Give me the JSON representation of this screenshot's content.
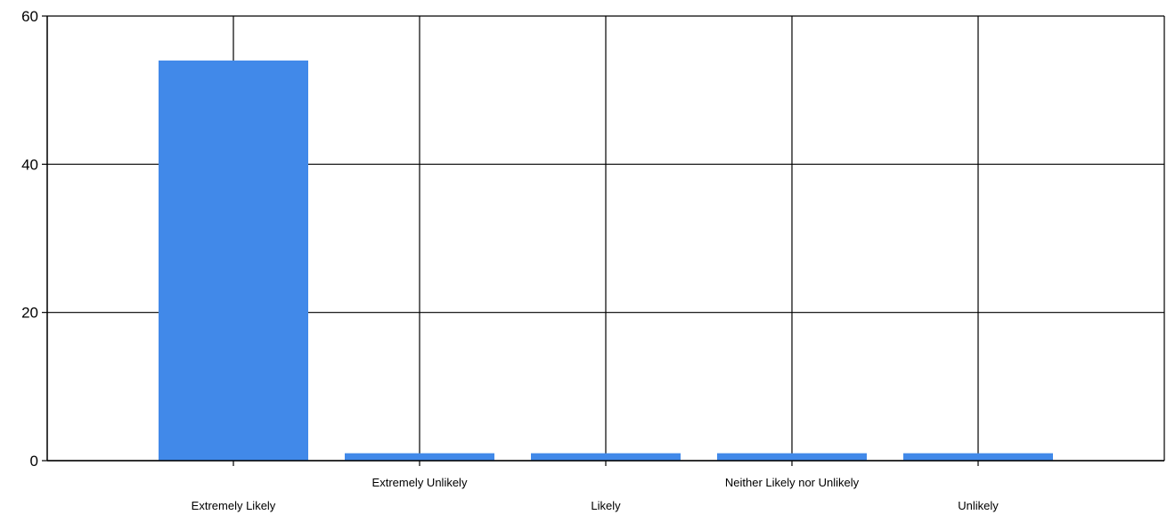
{
  "chart_data": {
    "type": "bar",
    "title": "",
    "xlabel": "",
    "ylabel": "",
    "categories": [
      "Extremely Likely",
      "Extremely Unlikely",
      "Likely",
      "Neither Likely nor Unlikely",
      "Unlikely"
    ],
    "values": [
      54,
      1,
      1,
      1,
      1
    ],
    "ylim": [
      0,
      60
    ],
    "yticks": [
      0,
      20,
      40,
      60
    ],
    "grid": true,
    "legend": "none",
    "bar_color": "#4189e9",
    "axis_color": "#000000"
  }
}
